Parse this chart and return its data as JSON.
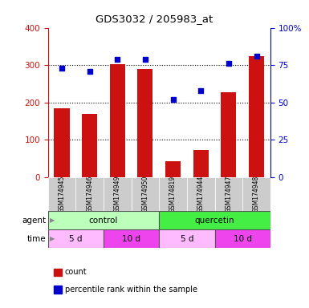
{
  "title": "GDS3032 / 205983_at",
  "samples": [
    "GSM174945",
    "GSM174946",
    "GSM174949",
    "GSM174950",
    "GSM174819",
    "GSM174944",
    "GSM174947",
    "GSM174948"
  ],
  "counts": [
    185,
    170,
    303,
    290,
    42,
    72,
    228,
    323
  ],
  "percentile_ranks": [
    73,
    71,
    79,
    79,
    52,
    58,
    76,
    81
  ],
  "agent_groups": [
    {
      "label": "control",
      "start": 0,
      "end": 4,
      "color": "#bbffbb"
    },
    {
      "label": "quercetin",
      "start": 4,
      "end": 8,
      "color": "#44ee44"
    }
  ],
  "time_groups": [
    {
      "label": "5 d",
      "start": 0,
      "end": 2,
      "color": "#ffbbff"
    },
    {
      "label": "10 d",
      "start": 2,
      "end": 4,
      "color": "#ee44ee"
    },
    {
      "label": "5 d",
      "start": 4,
      "end": 6,
      "color": "#ffbbff"
    },
    {
      "label": "10 d",
      "start": 6,
      "end": 8,
      "color": "#ee44ee"
    }
  ],
  "bar_color": "#cc1111",
  "dot_color": "#0000cc",
  "left_ylim": [
    0,
    400
  ],
  "right_ylim": [
    0,
    100
  ],
  "left_yticks": [
    0,
    100,
    200,
    300,
    400
  ],
  "right_yticks": [
    0,
    25,
    50,
    75,
    100
  ],
  "right_yticklabels": [
    "0",
    "25",
    "50",
    "75",
    "100%"
  ],
  "grid_values": [
    100,
    200,
    300
  ],
  "background_color": "#ffffff",
  "label_color_left": "#cc1111",
  "label_color_right": "#0000cc",
  "sample_bg": "#cccccc",
  "legend_items": [
    {
      "color": "#cc1111",
      "marker": "s",
      "label": "count"
    },
    {
      "color": "#0000cc",
      "marker": "s",
      "label": "percentile rank within the sample"
    }
  ]
}
